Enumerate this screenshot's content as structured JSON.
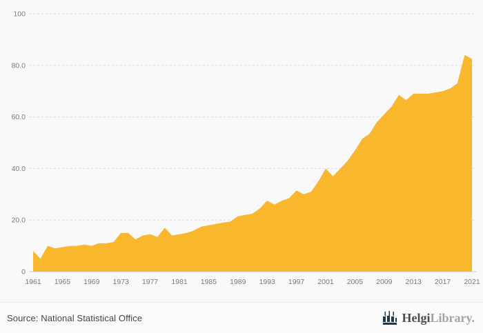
{
  "source_label": "Source: National Statistical Office",
  "logo": {
    "part1": "Helgi",
    "part2": "Library.",
    "icon_color": "#233746"
  },
  "chart_data": {
    "type": "area",
    "title": "",
    "xlabel": "",
    "ylabel": "",
    "x": [
      1961,
      1962,
      1963,
      1964,
      1965,
      1966,
      1967,
      1968,
      1969,
      1970,
      1971,
      1972,
      1973,
      1974,
      1975,
      1976,
      1977,
      1978,
      1979,
      1980,
      1981,
      1982,
      1983,
      1984,
      1985,
      1986,
      1987,
      1988,
      1989,
      1990,
      1991,
      1992,
      1993,
      1994,
      1995,
      1996,
      1997,
      1998,
      1999,
      2000,
      2001,
      2002,
      2003,
      2004,
      2005,
      2006,
      2007,
      2008,
      2009,
      2010,
      2011,
      2012,
      2013,
      2014,
      2015,
      2016,
      2017,
      2018,
      2019,
      2020,
      2021
    ],
    "values": [
      8,
      5,
      10,
      9,
      9.5,
      10,
      10,
      10.5,
      10,
      11,
      11,
      11.5,
      15,
      15,
      12.5,
      14,
      14.5,
      13.5,
      17,
      14,
      14.5,
      15,
      16,
      17.5,
      18,
      18.5,
      19,
      19.5,
      21.5,
      22,
      22.5,
      24.5,
      27.5,
      26,
      27.5,
      28.5,
      31.5,
      30,
      31,
      35,
      40,
      37,
      40,
      43,
      47,
      51.5,
      53.5,
      58,
      61,
      64,
      68.5,
      66.5,
      69,
      69,
      69,
      69.5,
      70,
      71,
      73,
      84,
      82.5
    ],
    "ylim": [
      0,
      100
    ],
    "xlim": [
      1961,
      2021
    ],
    "y_ticks": [
      {
        "label": "0",
        "value": 0
      },
      {
        "label": "20.0",
        "value": 20
      },
      {
        "label": "40.0",
        "value": 40
      },
      {
        "label": "60.0",
        "value": 60
      },
      {
        "label": "80.0",
        "value": 80
      },
      {
        "label": "100",
        "value": 100
      }
    ],
    "x_ticks": [
      {
        "label": "1961",
        "value": 1961
      },
      {
        "label": "1965",
        "value": 1965
      },
      {
        "label": "1969",
        "value": 1969
      },
      {
        "label": "1973",
        "value": 1973
      },
      {
        "label": "1977",
        "value": 1977
      },
      {
        "label": "1981",
        "value": 1981
      },
      {
        "label": "1985",
        "value": 1985
      },
      {
        "label": "1989",
        "value": 1989
      },
      {
        "label": "1993",
        "value": 1993
      },
      {
        "label": "1997",
        "value": 1997
      },
      {
        "label": "2001",
        "value": 2001
      },
      {
        "label": "2005",
        "value": 2005
      },
      {
        "label": "2017",
        "value": 2017
      },
      {
        "label": "2013",
        "value": 2013
      },
      {
        "label": "2009",
        "value": 2009
      },
      {
        "label": "2021",
        "value": 2021
      }
    ],
    "grid": "horizontal-dashed",
    "legend": "none",
    "area_color": "#f8b72c",
    "grid_color": "#dcdcdc",
    "axis_line_color": "#cfcfcf",
    "tick_text_color": "#7a7a7a"
  }
}
